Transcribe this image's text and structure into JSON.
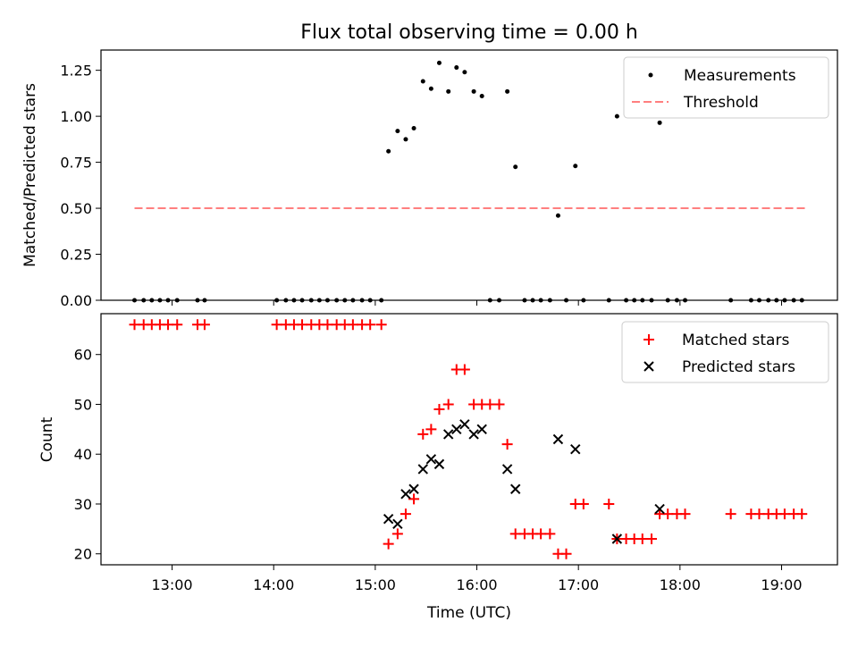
{
  "title": "Flux total observing time = 0.00 h",
  "colors": {
    "threshold": "#ff7f7f",
    "matched": "#ff0000",
    "predicted": "#000000",
    "measure": "#000000"
  },
  "chart_data": [
    {
      "type": "scatter",
      "panel": "top",
      "title": "Flux total observing time = 0.00 h",
      "ylabel": "Matched/Predicted stars",
      "xlim": [
        12.3,
        19.55
      ],
      "ylim": [
        0,
        1.36
      ],
      "yticks": [
        0,
        0.25,
        0.5,
        0.75,
        1.0,
        1.25
      ],
      "ytick_labels": [
        "0.00",
        "0.25",
        "0.50",
        "0.75",
        "1.00",
        "1.25"
      ],
      "legend": {
        "position": "top-right",
        "entries": [
          "Measurements",
          "Threshold"
        ]
      },
      "threshold": {
        "name": "Threshold",
        "y": 0.5,
        "x": [
          12.63,
          19.23
        ]
      },
      "series": [
        {
          "name": "Measurements",
          "points": [
            [
              12.63,
              0
            ],
            [
              12.72,
              0
            ],
            [
              12.8,
              0
            ],
            [
              12.88,
              0
            ],
            [
              12.96,
              0
            ],
            [
              13.05,
              0
            ],
            [
              13.25,
              0
            ],
            [
              13.32,
              0
            ],
            [
              14.03,
              0
            ],
            [
              14.12,
              0
            ],
            [
              14.2,
              0
            ],
            [
              14.28,
              0
            ],
            [
              14.37,
              0
            ],
            [
              14.45,
              0
            ],
            [
              14.53,
              0
            ],
            [
              14.62,
              0
            ],
            [
              14.7,
              0
            ],
            [
              14.78,
              0
            ],
            [
              14.87,
              0
            ],
            [
              14.95,
              0
            ],
            [
              15.06,
              0
            ],
            [
              15.13,
              0.81
            ],
            [
              15.22,
              0.92
            ],
            [
              15.3,
              0.875
            ],
            [
              15.38,
              0.935
            ],
            [
              15.47,
              1.19
            ],
            [
              15.55,
              1.15
            ],
            [
              15.63,
              1.29
            ],
            [
              15.72,
              1.135
            ],
            [
              15.8,
              1.265
            ],
            [
              15.88,
              1.24
            ],
            [
              15.97,
              1.135
            ],
            [
              16.05,
              1.11
            ],
            [
              16.13,
              0
            ],
            [
              16.22,
              0
            ],
            [
              16.3,
              1.135
            ],
            [
              16.38,
              0.725
            ],
            [
              16.47,
              0
            ],
            [
              16.55,
              0
            ],
            [
              16.63,
              0
            ],
            [
              16.72,
              0
            ],
            [
              16.8,
              0.46
            ],
            [
              16.88,
              0
            ],
            [
              16.97,
              0.73
            ],
            [
              17.05,
              0
            ],
            [
              17.3,
              0
            ],
            [
              17.38,
              1.0
            ],
            [
              17.47,
              0
            ],
            [
              17.55,
              0
            ],
            [
              17.63,
              0
            ],
            [
              17.72,
              0
            ],
            [
              17.8,
              0.965
            ],
            [
              17.88,
              0
            ],
            [
              17.97,
              0
            ],
            [
              18.05,
              0
            ],
            [
              18.5,
              0
            ],
            [
              18.7,
              0
            ],
            [
              18.78,
              0
            ],
            [
              18.87,
              0
            ],
            [
              18.95,
              0
            ],
            [
              19.03,
              0
            ],
            [
              19.12,
              0
            ],
            [
              19.2,
              0
            ]
          ]
        }
      ]
    },
    {
      "type": "scatter",
      "panel": "bottom",
      "xlabel": "Time (UTC)",
      "ylabel": "Count",
      "xlim": [
        12.3,
        19.55
      ],
      "ylim": [
        17.8,
        68.2
      ],
      "xticks": [
        13,
        14,
        15,
        16,
        17,
        18,
        19
      ],
      "xtick_labels": [
        "13:00",
        "14:00",
        "15:00",
        "16:00",
        "17:00",
        "18:00",
        "19:00"
      ],
      "yticks": [
        20,
        30,
        40,
        50,
        60
      ],
      "ytick_labels": [
        "20",
        "30",
        "40",
        "50",
        "60"
      ],
      "legend": {
        "position": "top-right",
        "entries": [
          "Matched stars",
          "Predicted stars"
        ]
      },
      "series": [
        {
          "name": "Matched stars",
          "points": [
            [
              12.63,
              66
            ],
            [
              12.72,
              66
            ],
            [
              12.8,
              66
            ],
            [
              12.88,
              66
            ],
            [
              12.96,
              66
            ],
            [
              13.05,
              66
            ],
            [
              13.25,
              66
            ],
            [
              13.32,
              66
            ],
            [
              14.03,
              66
            ],
            [
              14.12,
              66
            ],
            [
              14.2,
              66
            ],
            [
              14.28,
              66
            ],
            [
              14.37,
              66
            ],
            [
              14.45,
              66
            ],
            [
              14.53,
              66
            ],
            [
              14.62,
              66
            ],
            [
              14.7,
              66
            ],
            [
              14.78,
              66
            ],
            [
              14.87,
              66
            ],
            [
              14.95,
              66
            ],
            [
              15.06,
              66
            ],
            [
              15.13,
              22
            ],
            [
              15.22,
              24
            ],
            [
              15.3,
              28
            ],
            [
              15.38,
              31
            ],
            [
              15.47,
              44
            ],
            [
              15.55,
              45
            ],
            [
              15.63,
              49
            ],
            [
              15.72,
              50
            ],
            [
              15.8,
              57
            ],
            [
              15.88,
              57
            ],
            [
              15.97,
              50
            ],
            [
              16.05,
              50
            ],
            [
              16.13,
              50
            ],
            [
              16.22,
              50
            ],
            [
              16.3,
              42
            ],
            [
              16.38,
              24
            ],
            [
              16.47,
              24
            ],
            [
              16.55,
              24
            ],
            [
              16.63,
              24
            ],
            [
              16.72,
              24
            ],
            [
              16.8,
              20
            ],
            [
              16.88,
              20
            ],
            [
              16.97,
              30
            ],
            [
              17.05,
              30
            ],
            [
              17.3,
              30
            ],
            [
              17.38,
              23
            ],
            [
              17.47,
              23
            ],
            [
              17.55,
              23
            ],
            [
              17.63,
              23
            ],
            [
              17.72,
              23
            ],
            [
              17.8,
              28
            ],
            [
              17.88,
              28
            ],
            [
              17.97,
              28
            ],
            [
              18.05,
              28
            ],
            [
              18.5,
              28
            ],
            [
              18.7,
              28
            ],
            [
              18.78,
              28
            ],
            [
              18.87,
              28
            ],
            [
              18.95,
              28
            ],
            [
              19.03,
              28
            ],
            [
              19.12,
              28
            ],
            [
              19.2,
              28
            ]
          ]
        },
        {
          "name": "Predicted stars",
          "points": [
            [
              15.13,
              27
            ],
            [
              15.22,
              26
            ],
            [
              15.3,
              32
            ],
            [
              15.38,
              33
            ],
            [
              15.47,
              37
            ],
            [
              15.55,
              39
            ],
            [
              15.63,
              38
            ],
            [
              15.72,
              44
            ],
            [
              15.8,
              45
            ],
            [
              15.88,
              46
            ],
            [
              15.97,
              44
            ],
            [
              16.05,
              45
            ],
            [
              16.3,
              37
            ],
            [
              16.38,
              33
            ],
            [
              16.8,
              43
            ],
            [
              16.97,
              41
            ],
            [
              17.38,
              23
            ],
            [
              17.8,
              29
            ]
          ]
        }
      ]
    }
  ]
}
